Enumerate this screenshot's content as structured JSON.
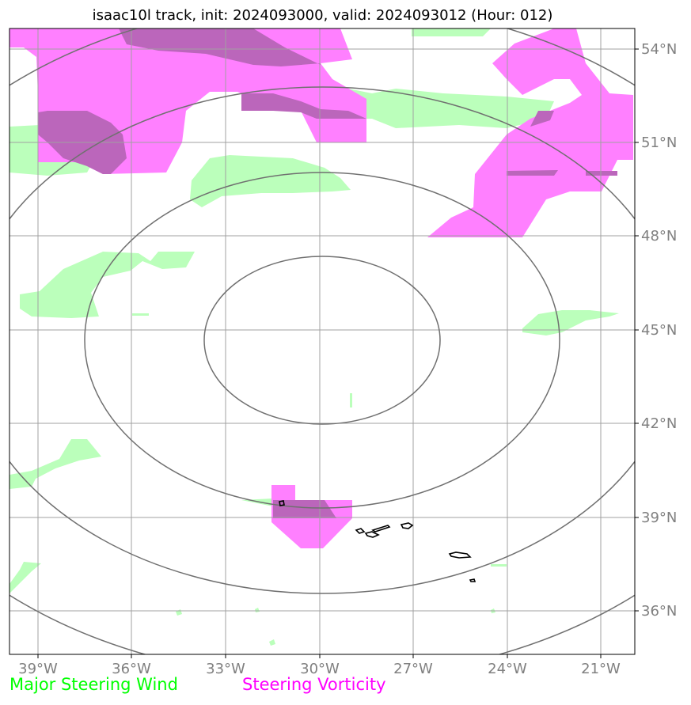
{
  "title": "isaac10l track, init: 2024093000, valid: 2024093012 (Hour: 012)",
  "legend": {
    "wind_label": "Major Steering Wind",
    "vorticity_label": "Steering Vorticity",
    "wind_color": "#00ff00",
    "vorticity_color": "#ff00ff"
  },
  "map": {
    "lon_range": [
      -40.0,
      -20.0
    ],
    "lat_range": [
      34.7,
      54.6
    ],
    "lon_ticks": [
      {
        "value": -39,
        "label": "39°W"
      },
      {
        "value": -36,
        "label": "36°W"
      },
      {
        "value": -33,
        "label": "33°W"
      },
      {
        "value": -30,
        "label": "30°W"
      },
      {
        "value": -27,
        "label": "27°W"
      },
      {
        "value": -24,
        "label": "24°W"
      },
      {
        "value": -21,
        "label": "21°W"
      }
    ],
    "lat_ticks": [
      {
        "value": 54,
        "label": "54°N"
      },
      {
        "value": 51,
        "label": "51°N"
      },
      {
        "value": 48,
        "label": "48°N"
      },
      {
        "value": 45,
        "label": "45°N"
      },
      {
        "value": 42,
        "label": "42°N"
      },
      {
        "value": 39,
        "label": "39°N"
      },
      {
        "value": 36,
        "label": "36°N"
      }
    ],
    "gridlines": true,
    "range_rings_center": {
      "lon": -30.0,
      "lat": 44.8
    },
    "range_rings_note": "4 concentric distance rings around storm center",
    "coastline": "Azores islands",
    "colors": {
      "wind_fill": "#bbffbb",
      "vorticity_fill": "#ff80ff",
      "overlap_fill": "#bb66bb",
      "ring": "#707070",
      "grid": "#a0a0a0"
    }
  }
}
